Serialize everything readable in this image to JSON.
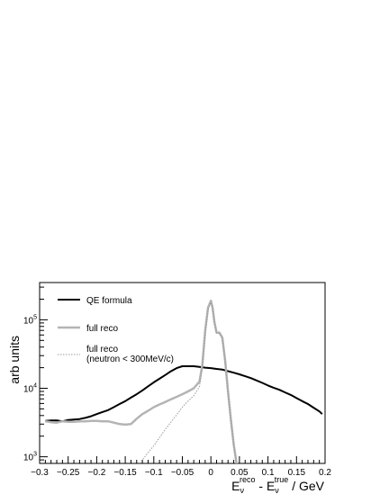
{
  "chart_data": {
    "type": "line",
    "ylabel": "arb units",
    "xlabel": {
      "main_reco": "E",
      "sub_reco": "ν",
      "sup_reco": "reco",
      "minus": " - E",
      "sub_true": "ν",
      "sup_true": "true",
      "unit": " / GeV"
    },
    "xlim": [
      -0.3,
      0.2
    ],
    "ylim": [
      800,
      350000
    ],
    "yscale": "log",
    "x_ticks": [
      {
        "value": -0.3,
        "label": "−0.3"
      },
      {
        "value": -0.25,
        "label": "−0.25"
      },
      {
        "value": -0.2,
        "label": "−0.2"
      },
      {
        "value": -0.15,
        "label": "−0.15"
      },
      {
        "value": -0.1,
        "label": "−0.1"
      },
      {
        "value": -0.05,
        "label": "−0.05"
      },
      {
        "value": 0,
        "label": "0"
      },
      {
        "value": 0.05,
        "label": "0.05"
      },
      {
        "value": 0.1,
        "label": "0.1"
      },
      {
        "value": 0.15,
        "label": "0.15"
      },
      {
        "value": 0.2,
        "label": "0.2"
      }
    ],
    "y_ticks": [
      {
        "value": 1000,
        "base": "10",
        "exp": "3"
      },
      {
        "value": 10000,
        "base": "10",
        "exp": "4"
      },
      {
        "value": 100000,
        "base": "10",
        "exp": "5"
      }
    ],
    "legend_position": "top-left",
    "series": [
      {
        "name": "QE formula",
        "color": "#000000",
        "style": "solid",
        "x": [
          -0.29,
          -0.28,
          -0.27,
          -0.26,
          -0.25,
          -0.24,
          -0.23,
          -0.22,
          -0.21,
          -0.2,
          -0.19,
          -0.18,
          -0.17,
          -0.16,
          -0.15,
          -0.14,
          -0.13,
          -0.12,
          -0.11,
          -0.1,
          -0.09,
          -0.08,
          -0.07,
          -0.06,
          -0.05,
          -0.04,
          -0.03,
          -0.02,
          -0.01,
          0,
          0.01,
          0.02,
          0.03,
          0.04,
          0.05,
          0.06,
          0.07,
          0.08,
          0.09,
          0.1,
          0.11,
          0.12,
          0.13,
          0.14,
          0.15,
          0.16,
          0.17,
          0.18,
          0.19,
          0.195
        ],
        "values": [
          3350,
          3400,
          3400,
          3300,
          3450,
          3500,
          3550,
          3700,
          3900,
          4200,
          4500,
          4800,
          5300,
          5900,
          6500,
          7300,
          8200,
          9300,
          10700,
          12200,
          13800,
          15600,
          17700,
          19700,
          21000,
          21000,
          21000,
          20500,
          20000,
          19700,
          19200,
          18800,
          17800,
          16900,
          16000,
          15000,
          14100,
          13000,
          12000,
          11000,
          10200,
          9500,
          8700,
          8000,
          7200,
          6500,
          5900,
          5200,
          4600,
          4200
        ]
      },
      {
        "name": "full reco",
        "color": "#b4b4b4",
        "style": "solid",
        "x": [
          -0.29,
          -0.28,
          -0.27,
          -0.26,
          -0.25,
          -0.24,
          -0.23,
          -0.22,
          -0.21,
          -0.2,
          -0.19,
          -0.18,
          -0.17,
          -0.16,
          -0.15,
          -0.14,
          -0.13,
          -0.12,
          -0.11,
          -0.1,
          -0.09,
          -0.08,
          -0.07,
          -0.06,
          -0.05,
          -0.04,
          -0.03,
          -0.02,
          -0.015,
          -0.01,
          -0.005,
          0,
          0.003,
          0.006,
          0.01,
          0.015,
          0.02,
          0.025,
          0.03,
          0.035,
          0.04,
          0.045,
          0.05
        ],
        "values": [
          3300,
          3200,
          3150,
          3300,
          3250,
          3250,
          3300,
          3300,
          3350,
          3350,
          3300,
          3300,
          3150,
          3000,
          2950,
          3000,
          3600,
          4200,
          4700,
          5300,
          5800,
          6300,
          6900,
          7500,
          8200,
          9000,
          10000,
          12500,
          22000,
          70000,
          150000,
          190000,
          150000,
          95000,
          65000,
          65000,
          55000,
          25000,
          9000,
          3500,
          1500,
          800,
          500
        ]
      },
      {
        "name": "full reco",
        "name_line2": "(neutron < 300MeV/c)",
        "color": "#9a9a9a",
        "style": "dotted",
        "x": [
          -0.125,
          -0.12,
          -0.11,
          -0.1,
          -0.09,
          -0.08,
          -0.07,
          -0.06,
          -0.05,
          -0.04,
          -0.03,
          -0.02,
          -0.015,
          -0.01,
          -0.005,
          0,
          0.003,
          0.006,
          0.01,
          0.015,
          0.02,
          0.025,
          0.03,
          0.035,
          0.04,
          0.045,
          0.05
        ],
        "values": [
          800,
          900,
          1150,
          1450,
          1900,
          2500,
          3200,
          4100,
          5300,
          6500,
          7800,
          10500,
          20000,
          65000,
          140000,
          180000,
          145000,
          92000,
          64000,
          63000,
          53000,
          24000,
          8800,
          3400,
          1450,
          790,
          500
        ]
      }
    ]
  }
}
